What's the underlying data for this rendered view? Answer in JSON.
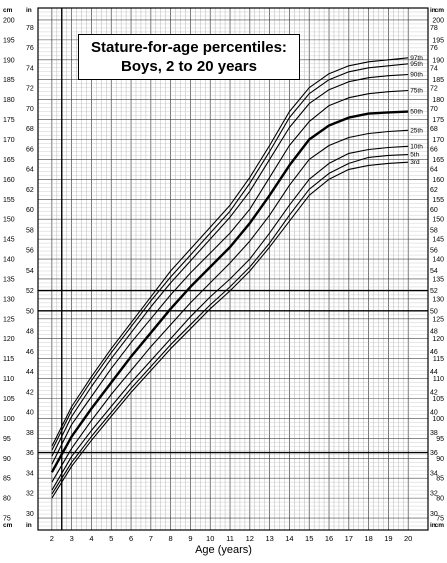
{
  "chart_data": {
    "type": "line",
    "title_line1": "Stature-for-age percentiles:",
    "title_line2": "Boys, 2 to 20 years",
    "xlabel": "Age (years)",
    "x_ticks": [
      2,
      3,
      4,
      5,
      6,
      7,
      8,
      9,
      10,
      11,
      12,
      13,
      14,
      15,
      16,
      17,
      18,
      19,
      20
    ],
    "xlim": [
      1.3,
      21.0
    ],
    "cm_axis": {
      "unit": "cm",
      "ticks": [
        75,
        80,
        85,
        90,
        95,
        100,
        105,
        110,
        115,
        120,
        125,
        130,
        135,
        140,
        145,
        150,
        155,
        160,
        165,
        170,
        175,
        180,
        185,
        190,
        195,
        200
      ],
      "ylim": [
        72,
        203
      ]
    },
    "in_axis": {
      "unit": "in",
      "ticks": [
        30,
        32,
        34,
        36,
        38,
        40,
        42,
        44,
        46,
        48,
        50,
        52,
        54,
        56,
        58,
        60,
        62,
        64,
        66,
        68,
        70,
        72,
        74,
        76,
        78
      ]
    },
    "grid": true,
    "ages": [
      2,
      3,
      4,
      5,
      6,
      7,
      8,
      9,
      10,
      11,
      12,
      13,
      14,
      15,
      16,
      17,
      18,
      19,
      20
    ],
    "series": [
      {
        "name": "97th",
        "values": [
          93,
          103,
          110.5,
          117.5,
          124,
          130.5,
          137,
          142.5,
          148,
          153.5,
          160.5,
          168.5,
          177,
          183,
          186.5,
          188.5,
          189.5,
          190,
          190.5
        ],
        "bold": false
      },
      {
        "name": "95th",
        "values": [
          92,
          102,
          109.5,
          116.5,
          123,
          129.5,
          135.5,
          141,
          146.5,
          152,
          159,
          167,
          175.5,
          181.5,
          185,
          187,
          188,
          188.5,
          189
        ],
        "bold": false
      },
      {
        "name": "90th",
        "values": [
          90.5,
          100.5,
          108,
          115,
          121.5,
          128,
          134,
          139.5,
          145,
          150.5,
          157,
          165,
          173,
          179,
          182.5,
          184.5,
          185.5,
          186,
          186.3
        ],
        "bold": false
      },
      {
        "name": "75th",
        "values": [
          88.5,
          98.5,
          105.5,
          112.5,
          119,
          125,
          131,
          136.5,
          141.5,
          146.5,
          152.5,
          160.5,
          168.5,
          174.5,
          178.5,
          180.5,
          181.5,
          182,
          182.3
        ],
        "bold": false
      },
      {
        "name": "50th",
        "values": [
          86.5,
          95.5,
          102.5,
          109,
          115.5,
          121.5,
          127.5,
          133,
          138,
          143,
          149,
          156,
          163.5,
          170,
          173.5,
          175.5,
          176.5,
          176.8,
          177
        ],
        "bold": true
      },
      {
        "name": "25th",
        "values": [
          84,
          92.5,
          99.5,
          106,
          112,
          118,
          123.5,
          129,
          134,
          139,
          144.5,
          151,
          158.5,
          165,
          168.5,
          170.5,
          171.5,
          172,
          172.3
        ],
        "bold": false
      },
      {
        "name": "10th",
        "values": [
          82,
          90.5,
          97,
          103,
          109,
          114.5,
          120,
          125.5,
          130.5,
          135,
          140,
          146.5,
          153.5,
          160,
          164,
          166.5,
          167.5,
          168,
          168.3
        ],
        "bold": false
      },
      {
        "name": "5th",
        "values": [
          81,
          89,
          95.5,
          101.5,
          107.5,
          113,
          118.5,
          123.5,
          128.5,
          133,
          138,
          144,
          151,
          157.5,
          161.5,
          164,
          165.5,
          166,
          166.2
        ],
        "bold": false
      },
      {
        "name": "3rd",
        "values": [
          80,
          88,
          94.5,
          100.5,
          106.5,
          112,
          117.5,
          122.5,
          127.5,
          132,
          137,
          143,
          149.5,
          156,
          160,
          162.5,
          163.5,
          164,
          164.3
        ],
        "bold": false
      }
    ]
  }
}
